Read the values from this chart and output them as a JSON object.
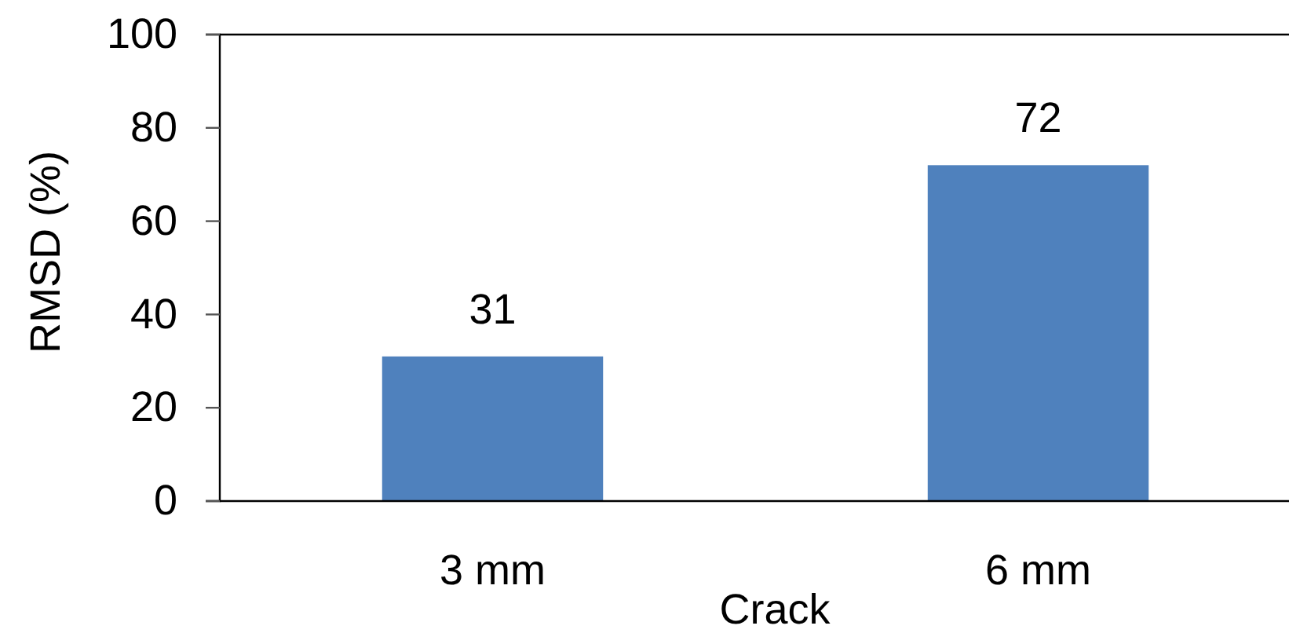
{
  "chart_data": {
    "type": "bar",
    "xlabel": "Crack",
    "ylabel": "RMSD (%)",
    "categories": [
      "3 mm",
      "6 mm"
    ],
    "values": [
      31,
      72
    ],
    "color": "#4f81bd",
    "ylim": [
      0,
      100
    ],
    "yticks": [
      0,
      20,
      40,
      60,
      80,
      100
    ],
    "data_labels": true
  }
}
